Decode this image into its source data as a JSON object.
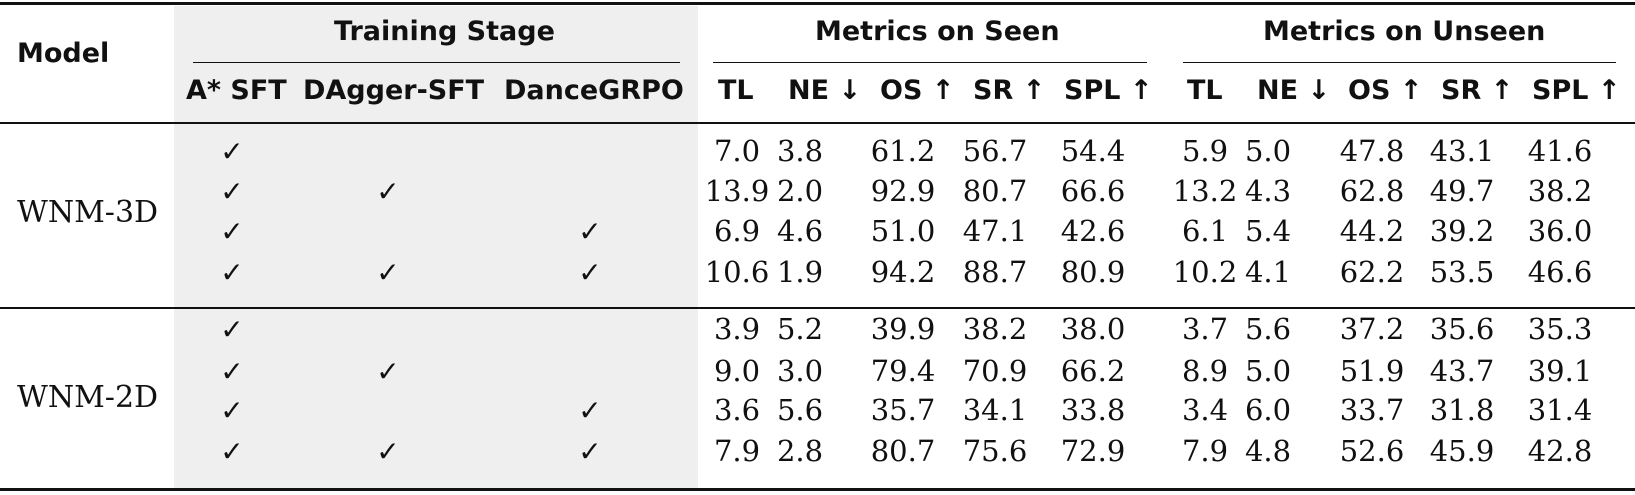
{
  "headers": {
    "model": "Model",
    "training_stage": "Training Stage",
    "metrics_seen": "Metrics on Seen",
    "metrics_unseen": "Metrics on Unseen",
    "stages": [
      "A* SFT",
      "DAgger-SFT",
      "DanceGRPO"
    ],
    "seen_cols": [
      "TL",
      "NE ↓",
      "OS ↑",
      "SR ↑",
      "SPL ↑"
    ],
    "unseen_cols": [
      "TL",
      "NE ↓",
      "OS ↑",
      "SR ↑",
      "SPL ↑"
    ]
  },
  "check_glyph": "✓",
  "groups": [
    {
      "model": "WNM-3D",
      "rows": [
        {
          "stages": [
            true,
            false,
            false
          ],
          "seen": [
            "7.0",
            "3.8",
            "61.2",
            "56.7",
            "54.4"
          ],
          "unseen": [
            "5.9",
            "5.0",
            "47.8",
            "43.1",
            "41.6"
          ]
        },
        {
          "stages": [
            true,
            true,
            false
          ],
          "seen": [
            "13.9",
            "2.0",
            "92.9",
            "80.7",
            "66.6"
          ],
          "unseen": [
            "13.2",
            "4.3",
            "62.8",
            "49.7",
            "38.2"
          ]
        },
        {
          "stages": [
            true,
            false,
            true
          ],
          "seen": [
            "6.9",
            "4.6",
            "51.0",
            "47.1",
            "42.6"
          ],
          "unseen": [
            "6.1",
            "5.4",
            "44.2",
            "39.2",
            "36.0"
          ]
        },
        {
          "stages": [
            true,
            true,
            true
          ],
          "seen": [
            "10.6",
            "1.9",
            "94.2",
            "88.7",
            "80.9"
          ],
          "unseen": [
            "10.2",
            "4.1",
            "62.2",
            "53.5",
            "46.6"
          ]
        }
      ]
    },
    {
      "model": "WNM-2D",
      "rows": [
        {
          "stages": [
            true,
            false,
            false
          ],
          "seen": [
            "3.9",
            "5.2",
            "39.9",
            "38.2",
            "38.0"
          ],
          "unseen": [
            "3.7",
            "5.6",
            "37.2",
            "35.6",
            "35.3"
          ]
        },
        {
          "stages": [
            true,
            true,
            false
          ],
          "seen": [
            "9.0",
            "3.0",
            "79.4",
            "70.9",
            "66.2"
          ],
          "unseen": [
            "8.9",
            "5.0",
            "51.9",
            "43.7",
            "39.1"
          ]
        },
        {
          "stages": [
            true,
            false,
            true
          ],
          "seen": [
            "3.6",
            "5.6",
            "35.7",
            "34.1",
            "33.8"
          ],
          "unseen": [
            "3.4",
            "6.0",
            "33.7",
            "31.8",
            "31.4"
          ]
        },
        {
          "stages": [
            true,
            true,
            true
          ],
          "seen": [
            "7.9",
            "2.8",
            "80.7",
            "75.6",
            "72.9"
          ],
          "unseen": [
            "7.9",
            "4.8",
            "52.6",
            "45.9",
            "42.8"
          ]
        }
      ]
    }
  ]
}
